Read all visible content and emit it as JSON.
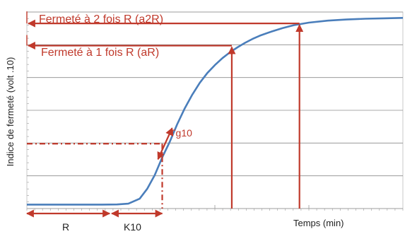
{
  "chart_data": {
    "type": "line",
    "title": "",
    "xlabel": "Temps (min)",
    "ylabel": "Indice de fermeté (volt .10)",
    "xlim": [
      0,
      100
    ],
    "ylim": [
      0,
      100
    ],
    "grid": true,
    "x_ticks": [
      {
        "label": "R",
        "x": 22
      },
      {
        "label": "K10",
        "x": 36
      }
    ],
    "series": [
      {
        "values_xy": [
          [
            0,
            2
          ],
          [
            5,
            2
          ],
          [
            10,
            2
          ],
          [
            15,
            2
          ],
          [
            20,
            2
          ],
          [
            24,
            2.1
          ],
          [
            27,
            2.5
          ],
          [
            30,
            5
          ],
          [
            32,
            10
          ],
          [
            34,
            17
          ],
          [
            36,
            26
          ],
          [
            38,
            34
          ],
          [
            40,
            43
          ],
          [
            42,
            51
          ],
          [
            44,
            58
          ],
          [
            46,
            64
          ],
          [
            48,
            69
          ],
          [
            50,
            73
          ],
          [
            52,
            76.5
          ],
          [
            54,
            79.5
          ],
          [
            56,
            82
          ],
          [
            58,
            84.3
          ],
          [
            60,
            86.3
          ],
          [
            62,
            88
          ],
          [
            65,
            90
          ],
          [
            68,
            91.8
          ],
          [
            71,
            93.3
          ],
          [
            75,
            94.6
          ],
          [
            80,
            95.6
          ],
          [
            85,
            96.2
          ],
          [
            90,
            96.6
          ],
          [
            95,
            96.8
          ],
          [
            100,
            97
          ]
        ]
      }
    ],
    "annotations": [
      {
        "text": "Fermeté à 2 fois R (a2R)",
        "y": 94.2,
        "x": 72.5,
        "type": "level-arrow"
      },
      {
        "text": "Fermeté à 1 fois R (aR)",
        "y": 82.9,
        "x": 54.5,
        "type": "level-arrow"
      },
      {
        "text": "Tg10",
        "type": "tangent",
        "at_x": 36,
        "at_y": 33
      },
      {
        "text": "R",
        "type": "span-arrow",
        "from_x": 0,
        "to_x": 22
      },
      {
        "text": "K10",
        "type": "span-arrow",
        "from_x": 22,
        "to_x": 36
      }
    ],
    "colors": {
      "curve": "#4a7ebb",
      "annotation": "#c0392b",
      "grid": "#8c8c8c"
    }
  }
}
